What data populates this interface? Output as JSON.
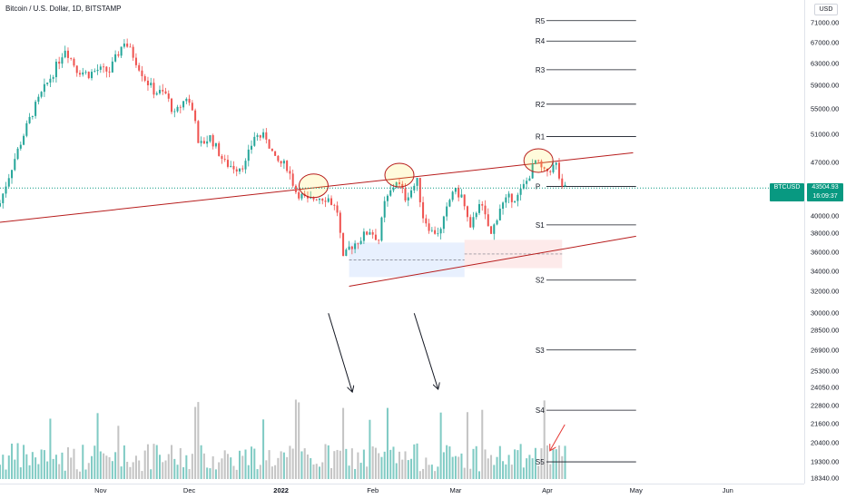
{
  "header": {
    "title": "Bitcoin / U.S. Dollar, 1D, BITSTAMP",
    "currency_button": "USD"
  },
  "last_price": {
    "symbol": "BTCUSD",
    "price": "43504.93",
    "countdown": "16:09:37"
  },
  "colors": {
    "up": "#26a69a",
    "down": "#ef5350",
    "volume_up": "#80cbc4",
    "volume_down": "#c4c4c4",
    "trendline": "#b71c1c",
    "pivot": "#131722",
    "last_price": "#089981",
    "arrow": "#131722",
    "red_arrow": "#e53935"
  },
  "chart_data": {
    "type": "candlestick",
    "title": "Bitcoin / U.S. Dollar, 1D, BITSTAMP",
    "y_scale": "log",
    "ylim": [
      18340,
      74000
    ],
    "price_ticks": [
      "71000.00",
      "67000.00",
      "63000.00",
      "59000.00",
      "55000.00",
      "51000.00",
      "47000.00",
      "43504.93",
      "40000.00",
      "38000.00",
      "36000.00",
      "34000.00",
      "32000.00",
      "30000.00",
      "28500.00",
      "26900.00",
      "25300.00",
      "24050.00",
      "22800.00",
      "21600.00",
      "20400.00",
      "19300.00",
      "18340.00"
    ],
    "time_ticks": [
      "Nov",
      "Dec",
      "2022",
      "Feb",
      "Mar",
      "Apr",
      "May",
      "Jun"
    ],
    "x_range": [
      "2021-09-28",
      "2022-06-25"
    ],
    "pivot_levels": [
      {
        "label": "R5",
        "value": 71500
      },
      {
        "label": "R4",
        "value": 67300
      },
      {
        "label": "R3",
        "value": 61800
      },
      {
        "label": "R2",
        "value": 55800
      },
      {
        "label": "R1",
        "value": 50700
      },
      {
        "label": "P",
        "value": 43700
      },
      {
        "label": "S1",
        "value": 39000
      },
      {
        "label": "S2",
        "value": 33100
      },
      {
        "label": "S3",
        "value": 26900
      },
      {
        "label": "S4",
        "value": 22500
      },
      {
        "label": "S5",
        "value": 19300
      }
    ],
    "pivot_range": [
      "2022-03-28",
      "2022-05-01"
    ],
    "trendlines": [
      {
        "from": [
          "2021-09-28",
          39300
        ],
        "to": [
          "2022-04-30",
          48300
        ]
      },
      {
        "from": [
          "2022-01-24",
          32500
        ],
        "to": [
          "2022-05-01",
          37700
        ]
      }
    ],
    "highlight_ellipses": [
      {
        "date": "2022-01-12",
        "price": 43800
      },
      {
        "date": "2022-02-10",
        "price": 45200
      },
      {
        "date": "2022-03-29",
        "price": 47200
      }
    ],
    "zones": [
      {
        "type": "long",
        "from": "2022-01-24",
        "to": "2022-03-04",
        "low": 33400,
        "high": 37000
      },
      {
        "type": "short",
        "from": "2022-03-04",
        "to": "2022-04-06",
        "low": 34300,
        "high": 37300
      }
    ],
    "arrows": [
      {
        "from": [
          "2022-01-17",
          30000
        ],
        "to": [
          "2022-01-25",
          23800
        ]
      },
      {
        "from": [
          "2022-02-15",
          30000
        ],
        "to": [
          "2022-02-23",
          24000
        ]
      }
    ],
    "anchors": [
      [
        "2021-09-28",
        41600
      ],
      [
        "2021-10-03",
        47500
      ],
      [
        "2021-10-09",
        54500
      ],
      [
        "2021-10-12",
        57500
      ],
      [
        "2021-10-16",
        61300
      ],
      [
        "2021-10-20",
        65900
      ],
      [
        "2021-10-24",
        61800
      ],
      [
        "2021-10-28",
        61000
      ],
      [
        "2021-10-31",
        61800
      ],
      [
        "2021-11-04",
        61500
      ],
      [
        "2021-11-09",
        67300
      ],
      [
        "2021-11-12",
        64500
      ],
      [
        "2021-11-16",
        60200
      ],
      [
        "2021-11-19",
        58000
      ],
      [
        "2021-11-23",
        57500
      ],
      [
        "2021-11-26",
        54000
      ],
      [
        "2021-11-30",
        57000
      ],
      [
        "2021-12-03",
        53700
      ],
      [
        "2021-12-04",
        49200
      ],
      [
        "2021-12-08",
        50600
      ],
      [
        "2021-12-13",
        46800
      ],
      [
        "2021-12-17",
        46200
      ],
      [
        "2021-12-20",
        46800
      ],
      [
        "2021-12-23",
        50800
      ],
      [
        "2021-12-27",
        50600
      ],
      [
        "2021-12-30",
        47200
      ],
      [
        "2022-01-03",
        46400
      ],
      [
        "2022-01-06",
        43100
      ],
      [
        "2022-01-10",
        41800
      ],
      [
        "2022-01-13",
        42400
      ],
      [
        "2022-01-17",
        42200
      ],
      [
        "2022-01-20",
        40600
      ],
      [
        "2022-01-22",
        35100
      ],
      [
        "2022-01-24",
        36400
      ],
      [
        "2022-01-27",
        37200
      ],
      [
        "2022-01-31",
        38400
      ],
      [
        "2022-02-03",
        37300
      ],
      [
        "2022-02-05",
        41500
      ],
      [
        "2022-02-09",
        44500
      ],
      [
        "2022-02-12",
        42300
      ],
      [
        "2022-02-16",
        44300
      ],
      [
        "2022-02-18",
        40000
      ],
      [
        "2022-02-21",
        38200
      ],
      [
        "2022-02-24",
        38300
      ],
      [
        "2022-02-28",
        43200
      ],
      [
        "2022-03-03",
        42500
      ],
      [
        "2022-03-06",
        38300
      ],
      [
        "2022-03-09",
        41900
      ],
      [
        "2022-03-13",
        37800
      ],
      [
        "2022-03-16",
        41100
      ],
      [
        "2022-03-19",
        42200
      ],
      [
        "2022-03-22",
        42400
      ],
      [
        "2022-03-25",
        44400
      ],
      [
        "2022-03-28",
        47100
      ],
      [
        "2022-03-31",
        45500
      ],
      [
        "2022-04-04",
        46600
      ],
      [
        "2022-04-06",
        43200
      ],
      [
        "2022-04-07",
        43505
      ]
    ]
  }
}
